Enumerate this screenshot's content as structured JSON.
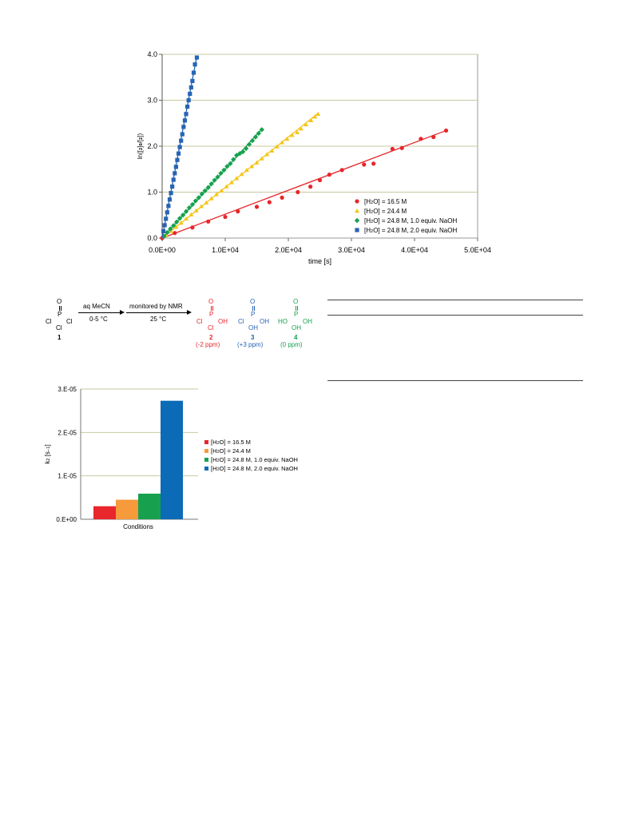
{
  "chart_data": [
    {
      "type": "scatter",
      "title": "",
      "xlabel": "time [s]",
      "ylabel_parts": [
        "ln([",
        "2",
        "]",
        "0",
        "/[",
        "2",
        "])"
      ],
      "xlim": [
        0,
        50000
      ],
      "ylim": [
        0,
        4.0
      ],
      "x_ticks": [
        0,
        10000,
        20000,
        30000,
        40000,
        50000
      ],
      "x_tick_labels": [
        "0.0E+00",
        "1.0E+04",
        "2.0E+04",
        "3.0E+04",
        "4.0E+04",
        "5.0E+04"
      ],
      "y_ticks": [
        0,
        1,
        2,
        3,
        4
      ],
      "y_tick_labels": [
        "0.0",
        "1.0",
        "2.0",
        "3.0",
        "4.0"
      ],
      "grid": true,
      "legend_position": "bottom-right",
      "series": [
        {
          "name": "[H2O] = 16.5 M",
          "legend_parts": [
            "[H",
            "2",
            "O] = 16.5 M"
          ],
          "color": "#e8262b",
          "marker": "circle",
          "fit_slope": 5.2e-05,
          "points": [
            [
              0,
              0
            ],
            [
              2000,
              0.11
            ],
            [
              4800,
              0.23
            ],
            [
              7300,
              0.36
            ],
            [
              10000,
              0.46
            ],
            [
              12000,
              0.58
            ],
            [
              15000,
              0.68
            ],
            [
              17000,
              0.78
            ],
            [
              19000,
              0.88
            ],
            [
              21500,
              1.0
            ],
            [
              23500,
              1.12
            ],
            [
              25000,
              1.26
            ],
            [
              26500,
              1.38
            ],
            [
              28500,
              1.48
            ],
            [
              32000,
              1.6
            ],
            [
              33500,
              1.62
            ],
            [
              36500,
              1.94
            ],
            [
              38000,
              1.96
            ],
            [
              41000,
              2.16
            ],
            [
              43000,
              2.2
            ],
            [
              45000,
              2.34
            ]
          ]
        },
        {
          "name": "[H2O] = 24.4 M",
          "legend_parts": [
            "[H",
            "2",
            "O] = 24.4 M"
          ],
          "color": "#f5c518",
          "marker": "triangle",
          "fit_slope": 0.00011,
          "points": [
            [
              600,
              0.06
            ],
            [
              1400,
              0.15
            ],
            [
              2200,
              0.24
            ],
            [
              3000,
              0.33
            ],
            [
              3800,
              0.42
            ],
            [
              4600,
              0.51
            ],
            [
              5400,
              0.6
            ],
            [
              6200,
              0.69
            ],
            [
              7000,
              0.77
            ],
            [
              7800,
              0.86
            ],
            [
              8600,
              0.95
            ],
            [
              9400,
              1.03
            ],
            [
              10200,
              1.12
            ],
            [
              11000,
              1.21
            ],
            [
              11800,
              1.3
            ],
            [
              12600,
              1.39
            ],
            [
              13400,
              1.48
            ],
            [
              14200,
              1.56
            ],
            [
              15000,
              1.64
            ],
            [
              15800,
              1.73
            ],
            [
              16600,
              1.82
            ],
            [
              17400,
              1.9
            ],
            [
              18200,
              1.99
            ],
            [
              19000,
              2.08
            ],
            [
              19800,
              2.16
            ],
            [
              20600,
              2.24
            ],
            [
              21400,
              2.3
            ],
            [
              22000,
              2.38
            ],
            [
              22800,
              2.47
            ],
            [
              23600,
              2.56
            ],
            [
              24200,
              2.64
            ],
            [
              24700,
              2.7
            ]
          ]
        },
        {
          "name": "[H2O] = 24.8 M, 1.0 equiv. NaOH",
          "legend_parts": [
            "[H",
            "2",
            "O] = 24.8 M, 1.0 equiv. NaOH"
          ],
          "color": "#17a14f",
          "marker": "diamond",
          "fit_slope": 0.00015,
          "points": [
            [
              300,
              0.04
            ],
            [
              800,
              0.12
            ],
            [
              1300,
              0.2
            ],
            [
              1800,
              0.27
            ],
            [
              2300,
              0.35
            ],
            [
              2800,
              0.43
            ],
            [
              3300,
              0.5
            ],
            [
              3800,
              0.58
            ],
            [
              4300,
              0.66
            ],
            [
              4800,
              0.73
            ],
            [
              5300,
              0.81
            ],
            [
              5800,
              0.88
            ],
            [
              6300,
              0.96
            ],
            [
              6800,
              1.03
            ],
            [
              7300,
              1.1
            ],
            [
              7800,
              1.18
            ],
            [
              8300,
              1.26
            ],
            [
              8800,
              1.33
            ],
            [
              9300,
              1.41
            ],
            [
              9800,
              1.48
            ],
            [
              10300,
              1.56
            ],
            [
              10800,
              1.62
            ],
            [
              11300,
              1.71
            ],
            [
              11800,
              1.8
            ],
            [
              12300,
              1.84
            ],
            [
              12800,
              1.88
            ],
            [
              13300,
              1.95
            ],
            [
              13800,
              2.04
            ],
            [
              14300,
              2.12
            ],
            [
              14800,
              2.2
            ],
            [
              15300,
              2.28
            ],
            [
              15800,
              2.36
            ]
          ]
        },
        {
          "name": "[H2O] = 24.8 M, 2.0 equiv. NaOH",
          "legend_parts": [
            "[H",
            "2",
            "O] = 24.8 M, 2.0 equiv. NaOH"
          ],
          "color": "#2764b4",
          "marker": "square",
          "fit_slope": 0.00072,
          "points": [
            [
              200,
              0.15
            ],
            [
              400,
              0.28
            ],
            [
              600,
              0.42
            ],
            [
              800,
              0.56
            ],
            [
              1000,
              0.7
            ],
            [
              1200,
              0.84
            ],
            [
              1400,
              0.98
            ],
            [
              1600,
              1.12
            ],
            [
              1800,
              1.27
            ],
            [
              2000,
              1.41
            ],
            [
              2200,
              1.55
            ],
            [
              2400,
              1.7
            ],
            [
              2600,
              1.84
            ],
            [
              2800,
              1.98
            ],
            [
              3000,
              2.12
            ],
            [
              3200,
              2.26
            ],
            [
              3400,
              2.42
            ],
            [
              3600,
              2.56
            ],
            [
              3800,
              2.7
            ],
            [
              4000,
              2.86
            ],
            [
              4200,
              3.0
            ],
            [
              4400,
              3.14
            ],
            [
              4600,
              3.28
            ],
            [
              4800,
              3.42
            ],
            [
              5000,
              3.6
            ],
            [
              5200,
              3.78
            ],
            [
              5500,
              3.93
            ]
          ]
        }
      ]
    },
    {
      "type": "bar",
      "title": "",
      "xlabel": "Conditions",
      "ylabel_parts": [
        "k",
        "2",
        " [s",
        "−1",
        "]"
      ],
      "categories": [
        "Conditions"
      ],
      "ylim": [
        0,
        3e-05
      ],
      "y_ticks": [
        0,
        1e-05,
        2e-05,
        3e-05
      ],
      "y_tick_labels": [
        "0.E+00",
        "1.E-05",
        "2.E-05",
        "3.E-05"
      ],
      "grid": true,
      "legend_position": "right",
      "series": [
        {
          "name": "[H2O] = 16.5 M",
          "legend_parts": [
            "[H",
            "2",
            "O] = 16.5 M"
          ],
          "color": "#e8262b",
          "value": 3e-06
        },
        {
          "name": "[H2O] = 24.4 M",
          "legend_parts": [
            "[H",
            "2",
            "O] = 24.4 M"
          ],
          "color": "#f79a3c",
          "value": 4.5e-06
        },
        {
          "name": "[H2O] = 24.8 M, 1.0 equiv. NaOH",
          "legend_parts": [
            "[H",
            "2",
            "O] = 24.8 M, 1.0 equiv. NaOH"
          ],
          "color": "#17a14f",
          "value": 5.9e-06
        },
        {
          "name": "[H2O] = 24.8 M, 2.0 equiv. NaOH",
          "legend_parts": [
            "[H",
            "2",
            "O] = 24.8 M, 2.0 equiv. NaOH"
          ],
          "color": "#0b6bb7",
          "value": 2.73e-05
        }
      ]
    }
  ],
  "scheme": {
    "start": {
      "atoms": [
        "O",
        "P",
        "Cl",
        "Cl",
        "Cl"
      ],
      "number": "1"
    },
    "arrow1": {
      "above": "aq MeCN",
      "below": "0-5 °C"
    },
    "arrow2": {
      "above": "monitored by NMR",
      "below": "25 °C"
    },
    "products": [
      {
        "atoms": [
          "O",
          "P",
          "Cl",
          "OH",
          "Cl"
        ],
        "number": "2",
        "shift": "(-2 ppm)",
        "color": "#e8262b"
      },
      {
        "atoms": [
          "O",
          "P",
          "Cl",
          "OH",
          "OH"
        ],
        "number": "3",
        "shift": "(+3 ppm)",
        "color": "#2764b4"
      },
      {
        "atoms": [
          "O",
          "P",
          "HO",
          "OH",
          "OH"
        ],
        "number": "4",
        "shift": "(0 ppm)",
        "color": "#17a14f"
      }
    ]
  }
}
